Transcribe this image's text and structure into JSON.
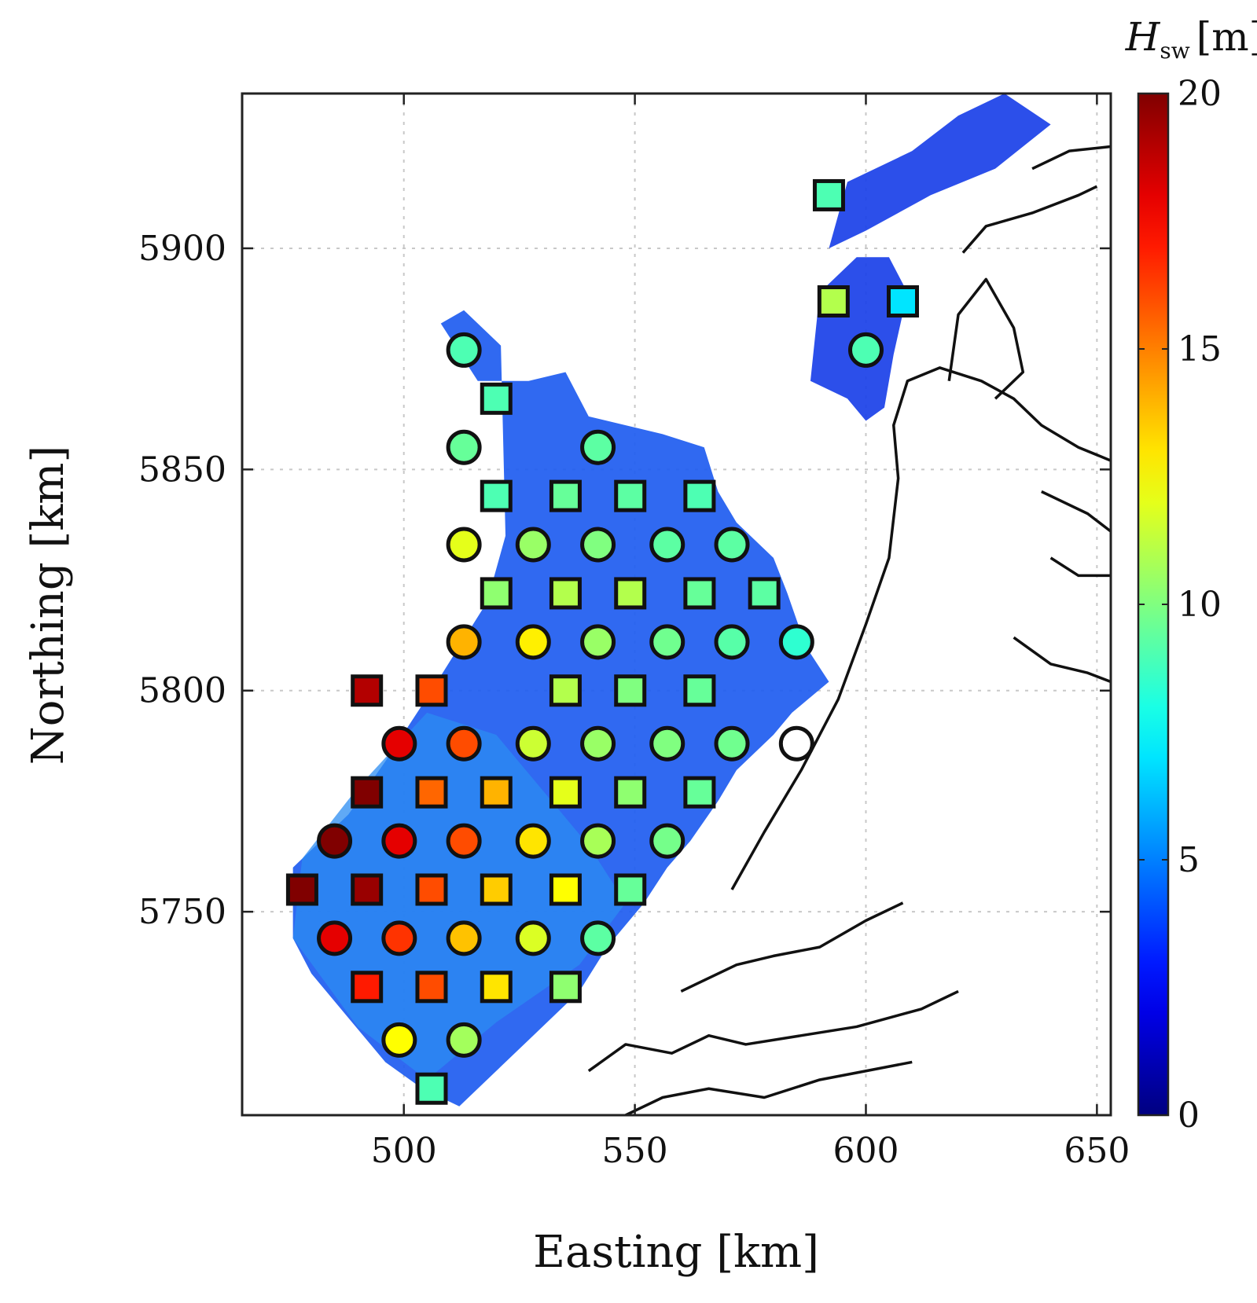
{
  "chart_data": {
    "type": "scatter",
    "xlabel": "Easting [km]",
    "ylabel": "Northing [km]",
    "xlim": [
      465,
      653
    ],
    "ylim": [
      5704,
      5935
    ],
    "xticks": [
      500,
      550,
      600,
      650
    ],
    "yticks": [
      5750,
      5800,
      5850,
      5900
    ],
    "xtick_labels": [
      "500",
      "550",
      "600",
      "650"
    ],
    "ytick_labels": [
      "5750",
      "5800",
      "5850",
      "5900"
    ],
    "grid": true,
    "colormap": "jet",
    "colorbar": {
      "title_main": "H",
      "title_sub": "sw",
      "title_unit": "[m]",
      "range": [
        0,
        20
      ],
      "ticks": [
        0,
        5,
        10,
        15,
        20
      ],
      "tick_labels": [
        "0",
        "5",
        "10",
        "15",
        "20"
      ],
      "placement": "right"
    },
    "coastline_color": "#000000",
    "background_field": {
      "description_color": "#1a4cff",
      "typical_value": 3.5
    },
    "series": [
      {
        "marker": "square",
        "points": [
          {
            "x": 592,
            "y": 5912,
            "v": 9
          },
          {
            "x": 593,
            "y": 5888,
            "v": 11
          },
          {
            "x": 608,
            "y": 5888,
            "v": 7
          },
          {
            "x": 520,
            "y": 5866,
            "v": 9
          },
          {
            "x": 520,
            "y": 5844,
            "v": 9
          },
          {
            "x": 535,
            "y": 5844,
            "v": 9.5
          },
          {
            "x": 549,
            "y": 5844,
            "v": 9.3
          },
          {
            "x": 564,
            "y": 5844,
            "v": 9
          },
          {
            "x": 520,
            "y": 5822,
            "v": 10.3
          },
          {
            "x": 535,
            "y": 5822,
            "v": 11
          },
          {
            "x": 549,
            "y": 5822,
            "v": 11
          },
          {
            "x": 564,
            "y": 5822,
            "v": 9.5
          },
          {
            "x": 578,
            "y": 5822,
            "v": 9.3
          },
          {
            "x": 492,
            "y": 5800,
            "v": 19
          },
          {
            "x": 506,
            "y": 5800,
            "v": 16
          },
          {
            "x": 535,
            "y": 5800,
            "v": 11
          },
          {
            "x": 549,
            "y": 5800,
            "v": 10
          },
          {
            "x": 564,
            "y": 5800,
            "v": 9.5
          },
          {
            "x": 492,
            "y": 5777,
            "v": 20
          },
          {
            "x": 506,
            "y": 5777,
            "v": 15.5
          },
          {
            "x": 520,
            "y": 5777,
            "v": 14
          },
          {
            "x": 535,
            "y": 5777,
            "v": 12
          },
          {
            "x": 549,
            "y": 5777,
            "v": 10.3
          },
          {
            "x": 564,
            "y": 5777,
            "v": 9.5
          },
          {
            "x": 478,
            "y": 5755,
            "v": 20
          },
          {
            "x": 492,
            "y": 5755,
            "v": 19.5
          },
          {
            "x": 506,
            "y": 5755,
            "v": 16
          },
          {
            "x": 520,
            "y": 5755,
            "v": 13.5
          },
          {
            "x": 535,
            "y": 5755,
            "v": 12.5
          },
          {
            "x": 549,
            "y": 5755,
            "v": 9.5
          },
          {
            "x": 492,
            "y": 5733,
            "v": 17
          },
          {
            "x": 506,
            "y": 5733,
            "v": 16
          },
          {
            "x": 520,
            "y": 5733,
            "v": 13
          },
          {
            "x": 535,
            "y": 5733,
            "v": 10.3
          },
          {
            "x": 506,
            "y": 5710,
            "v": 9
          }
        ]
      },
      {
        "marker": "circle",
        "points": [
          {
            "x": 600,
            "y": 5877,
            "v": 9
          },
          {
            "x": 513,
            "y": 5877,
            "v": 9
          },
          {
            "x": 513,
            "y": 5855,
            "v": 9.5
          },
          {
            "x": 542,
            "y": 5855,
            "v": 9.3
          },
          {
            "x": 513,
            "y": 5833,
            "v": 12
          },
          {
            "x": 528,
            "y": 5833,
            "v": 10.5
          },
          {
            "x": 542,
            "y": 5833,
            "v": 10
          },
          {
            "x": 557,
            "y": 5833,
            "v": 9.3
          },
          {
            "x": 571,
            "y": 5833,
            "v": 9.3
          },
          {
            "x": 513,
            "y": 5811,
            "v": 14
          },
          {
            "x": 528,
            "y": 5811,
            "v": 12.8
          },
          {
            "x": 542,
            "y": 5811,
            "v": 10.5
          },
          {
            "x": 557,
            "y": 5811,
            "v": 9.7
          },
          {
            "x": 571,
            "y": 5811,
            "v": 9.2
          },
          {
            "x": 585,
            "y": 5811,
            "v": 8.4
          },
          {
            "x": 499,
            "y": 5788,
            "v": 18
          },
          {
            "x": 513,
            "y": 5788,
            "v": 16
          },
          {
            "x": 528,
            "y": 5788,
            "v": 11.5
          },
          {
            "x": 542,
            "y": 5788,
            "v": 10.5
          },
          {
            "x": 557,
            "y": 5788,
            "v": 10
          },
          {
            "x": 571,
            "y": 5788,
            "v": 9.7
          },
          {
            "x": 585,
            "y": 5788,
            "v": null
          },
          {
            "x": 485,
            "y": 5766,
            "v": 20
          },
          {
            "x": 499,
            "y": 5766,
            "v": 18
          },
          {
            "x": 513,
            "y": 5766,
            "v": 16
          },
          {
            "x": 528,
            "y": 5766,
            "v": 13
          },
          {
            "x": 542,
            "y": 5766,
            "v": 10.8
          },
          {
            "x": 557,
            "y": 5766,
            "v": 9.8
          },
          {
            "x": 485,
            "y": 5744,
            "v": 18
          },
          {
            "x": 499,
            "y": 5744,
            "v": 16.5
          },
          {
            "x": 513,
            "y": 5744,
            "v": 13.7
          },
          {
            "x": 528,
            "y": 5744,
            "v": 11.8
          },
          {
            "x": 542,
            "y": 5744,
            "v": 9.3
          },
          {
            "x": 499,
            "y": 5721,
            "v": 12.5
          },
          {
            "x": 513,
            "y": 5721,
            "v": 10.7
          }
        ]
      }
    ]
  }
}
